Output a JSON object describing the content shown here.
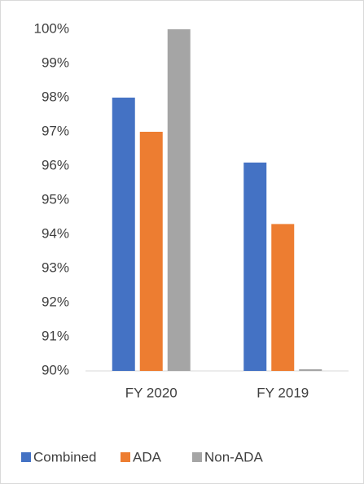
{
  "chart_data": {
    "type": "bar",
    "categories": [
      "FY 2020",
      "FY 2019"
    ],
    "series": [
      {
        "name": "Combined",
        "color": "#4472c4",
        "values": [
          98,
          96.1
        ]
      },
      {
        "name": "ADA",
        "color": "#ed7d31",
        "values": [
          97,
          94.3
        ]
      },
      {
        "name": "Non-ADA",
        "color": "#a5a5a5",
        "values": [
          100,
          90.05
        ]
      }
    ],
    "ylim": [
      90,
      100
    ],
    "yticks": [
      {
        "value": 90,
        "label": "90%"
      },
      {
        "value": 91,
        "label": "91%"
      },
      {
        "value": 92,
        "label": "92%"
      },
      {
        "value": 93,
        "label": "93%"
      },
      {
        "value": 94,
        "label": "94%"
      },
      {
        "value": 95,
        "label": "95%"
      },
      {
        "value": 96,
        "label": "96%"
      },
      {
        "value": 97,
        "label": "97%"
      },
      {
        "value": 98,
        "label": "98%"
      },
      {
        "value": 99,
        "label": "99%"
      },
      {
        "value": 100,
        "label": "100%"
      }
    ],
    "grid": false,
    "legend": "bottom"
  }
}
